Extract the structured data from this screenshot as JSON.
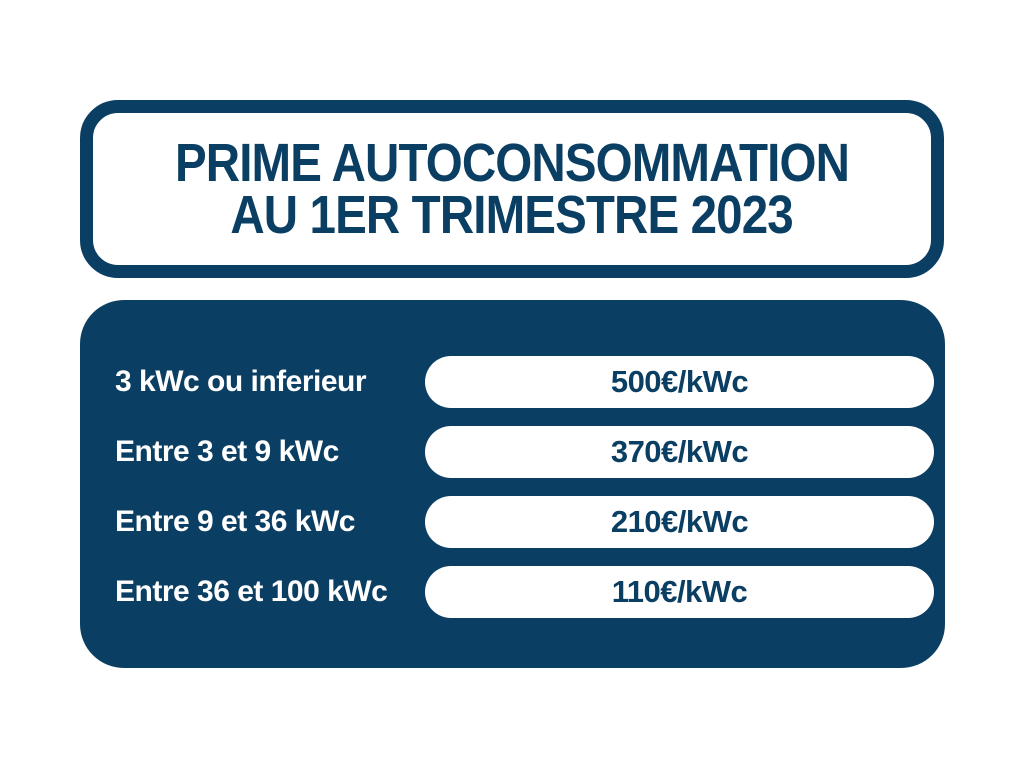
{
  "accent_color": "#0b3e63",
  "background_color": "#ffffff",
  "header": {
    "title_line1": "PRIME AUTOCONSOMMATION",
    "title_line2": "AU 1ER TRIMESTRE 2023"
  },
  "table": {
    "rows": [
      {
        "label": "3 kWc ou inferieur",
        "value": "500€/kWc"
      },
      {
        "label": "Entre 3 et 9 kWc",
        "value": "370€/kWc"
      },
      {
        "label": "Entre 9 et 36 kWc",
        "value": "210€/kWc"
      },
      {
        "label": "Entre 36 et 100 kWc",
        "value": "110€/kWc"
      }
    ]
  },
  "chart_data": {
    "type": "table",
    "title": "PRIME AUTOCONSOMMATION AU 1ER TRIMESTRE 2023",
    "categories": [
      "3 kWc ou inferieur",
      "Entre 3 et 9 kWc",
      "Entre 9 et 36 kWc",
      "Entre 36 et 100 kWc"
    ],
    "values": [
      "500€/kWc",
      "370€/kWc",
      "210€/kWc",
      "110€/kWc"
    ],
    "values_numeric": [
      500,
      370,
      210,
      110
    ],
    "unit": "€/kWc"
  }
}
